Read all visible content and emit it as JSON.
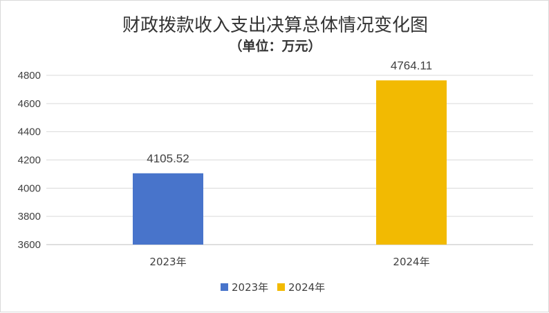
{
  "chart_data": {
    "type": "bar",
    "title": "财政拨款收入支出决算总体情况变化图",
    "subtitle": "（单位：万元）",
    "categories": [
      "2023年",
      "2024年"
    ],
    "values": [
      4105.52,
      4764.11
    ],
    "value_labels": [
      "4105.52",
      "4764.11"
    ],
    "colors": [
      "#4874CB",
      "#F2BA02"
    ],
    "ylim": [
      3600,
      4800
    ],
    "yticks": [
      3600,
      3800,
      4000,
      4200,
      4400,
      4600,
      4800
    ],
    "grid": true,
    "legend": {
      "placement": "bottom",
      "entries": [
        "2023年",
        "2024年"
      ]
    },
    "xlabel": "",
    "ylabel": ""
  }
}
